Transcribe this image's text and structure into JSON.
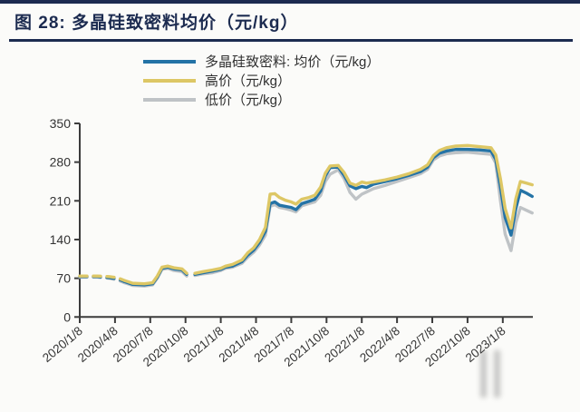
{
  "header": {
    "title": "图 28: 多晶硅致密料均价（元/kg）"
  },
  "theme": {
    "title_color": "#1c2b50",
    "rule_color": "#1c2b50",
    "topbar_color": "#1c2b50",
    "axis_color": "#3c3c3c",
    "background": "#fbfbf9"
  },
  "chart_data": {
    "type": "line",
    "title": "多晶硅致密料均价（元/kg）",
    "xlabel": "",
    "ylabel": "",
    "ylim": [
      0,
      350
    ],
    "y_ticks": [
      0,
      70,
      140,
      210,
      280,
      350
    ],
    "grid": false,
    "legend_position": "top",
    "x_unit": "months since 2020/1/8",
    "x_ticks": [
      0,
      3,
      6,
      9,
      12,
      15,
      18,
      21,
      24,
      27,
      30,
      33,
      36
    ],
    "x_tick_labels": [
      "2020/1/8",
      "2020/4/8",
      "2020/7/8",
      "2020/10/8",
      "2021/1/8",
      "2021/4/8",
      "2021/7/8",
      "2021/10/8",
      "2022/1/8",
      "2022/4/8",
      "2022/7/8",
      "2022/10/8",
      "2023/1/8"
    ],
    "dashed_until_month": 3.2,
    "x": [
      0,
      0.5,
      1.5,
      2.5,
      3.2,
      3.8,
      4.5,
      5.5,
      6.2,
      6.6,
      7.0,
      7.5,
      8.0,
      8.7,
      9.1,
      9.35,
      9.8,
      10.5,
      11.3,
      12.0,
      12.4,
      13.0,
      13.8,
      14.3,
      14.8,
      15.3,
      15.8,
      16.2,
      16.6,
      17.0,
      17.5,
      18.0,
      18.4,
      18.9,
      19.5,
      20.0,
      20.5,
      20.9,
      21.3,
      22.0,
      22.5,
      23.0,
      23.5,
      24.0,
      24.4,
      25.0,
      26.0,
      27.0,
      28.0,
      29.0,
      29.6,
      30.1,
      30.6,
      31.2,
      32.0,
      33.0,
      34.0,
      35.0,
      35.4,
      35.8,
      36.2,
      36.7,
      37.1,
      37.5,
      38.0,
      38.5
    ],
    "series": [
      {
        "name": "多晶硅致密料: 均价（元/kg）",
        "color": "#2473a6",
        "values": [
          73,
          73,
          73,
          71,
          69,
          64,
          59,
          58,
          60,
          72,
          88,
          90,
          87,
          85,
          77,
          null,
          77,
          80,
          83,
          86,
          90,
          92,
          100,
          112,
          121,
          135,
          155,
          205,
          208,
          202,
          200,
          198,
          194,
          205,
          209,
          213,
          228,
          255,
          270,
          271,
          256,
          237,
          232,
          236,
          234,
          240,
          245,
          250,
          256,
          263,
          271,
          288,
          296,
          300,
          303,
          303,
          302,
          300,
          285,
          235,
          180,
          148,
          195,
          229,
          224,
          218
        ]
      },
      {
        "name": "高价（元/kg）",
        "color": "#ddc765",
        "values": [
          74,
          74,
          74,
          73,
          71,
          66,
          61,
          60,
          62,
          74,
          90,
          92,
          89,
          87,
          79,
          null,
          79,
          82,
          85,
          88,
          92,
          95,
          103,
          116,
          125,
          140,
          162,
          222,
          223,
          216,
          211,
          208,
          204,
          213,
          216,
          220,
          235,
          260,
          273,
          274,
          261,
          242,
          238,
          244,
          242,
          244,
          248,
          253,
          259,
          267,
          275,
          292,
          301,
          306,
          309,
          310,
          308,
          306,
          293,
          250,
          196,
          161,
          213,
          245,
          242,
          239
        ]
      },
      {
        "name": "低价（元/kg）",
        "color": "#bfc3c6",
        "values": [
          72,
          72,
          72,
          70,
          67,
          62,
          57,
          56,
          58,
          70,
          86,
          88,
          84,
          82,
          74,
          null,
          75,
          78,
          80,
          84,
          88,
          90,
          97,
          108,
          117,
          130,
          148,
          200,
          203,
          198,
          196,
          193,
          190,
          201,
          205,
          208,
          220,
          245,
          258,
          266,
          250,
          225,
          213,
          222,
          226,
          232,
          238,
          245,
          252,
          259,
          267,
          284,
          291,
          295,
          297,
          298,
          296,
          294,
          278,
          210,
          150,
          120,
          170,
          198,
          193,
          188
        ]
      }
    ]
  }
}
